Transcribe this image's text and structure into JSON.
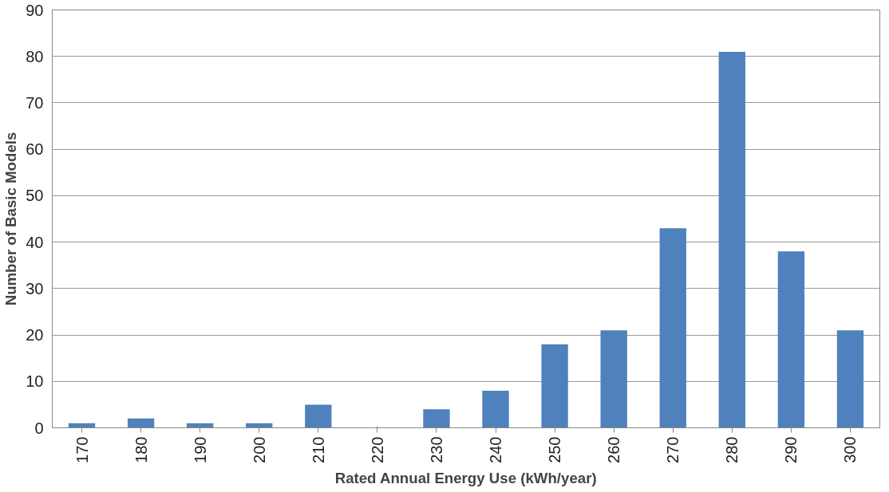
{
  "chart_data": {
    "type": "bar",
    "xlabel": "Rated Annual Energy Use (kWh/year)",
    "ylabel": "Number of Basic Models",
    "categories": [
      "170",
      "180",
      "190",
      "200",
      "210",
      "220",
      "230",
      "240",
      "250",
      "260",
      "270",
      "280",
      "290",
      "300"
    ],
    "values": [
      1,
      2,
      1,
      1,
      5,
      0,
      4,
      8,
      18,
      21,
      43,
      81,
      38,
      21
    ],
    "color": "#4f81bd",
    "ylim": [
      0,
      90
    ],
    "yticks": [
      0,
      10,
      20,
      30,
      40,
      50,
      60,
      70,
      80,
      90
    ],
    "grid": "y"
  }
}
